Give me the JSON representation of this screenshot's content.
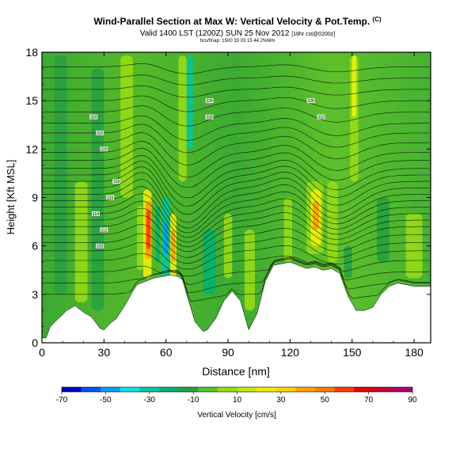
{
  "header": {
    "title": "Wind-Parallel Section at Max W: Vertical Velocity & Pot.Temp.",
    "title_mark": "(C)",
    "subtitle": "Valid 1400 LST (1200Z) SUN 25 Nov 2012",
    "subtitle_small": "[18hr cst@0200z]",
    "runinfo": "hcs/fmap: 1500 33 03 15 44 2%Mm"
  },
  "chart_data": {
    "type": "heatmap",
    "xlabel": "Distance [nm]",
    "ylabel": "Height [Kft MSL]",
    "xlim": [
      0,
      188
    ],
    "ylim": [
      0,
      18
    ],
    "xticks": [
      0,
      30,
      60,
      90,
      120,
      150,
      180
    ],
    "yticks": [
      0,
      3,
      6,
      9,
      12,
      15,
      18
    ],
    "grid": false,
    "terrain_kft": {
      "x": [
        0,
        2,
        4,
        8,
        12,
        16,
        20,
        24,
        28,
        30,
        33,
        36,
        40,
        44,
        46,
        50,
        54,
        58,
        62,
        66,
        68,
        70,
        74,
        78,
        80,
        84,
        88,
        92,
        96,
        100,
        104,
        108,
        112,
        116,
        120,
        124,
        128,
        132,
        136,
        140,
        144,
        148,
        152,
        156,
        160,
        164,
        168,
        172,
        176,
        180,
        184,
        188
      ],
      "y": [
        0.3,
        0.3,
        1.0,
        1.5,
        2.0,
        2.3,
        1.9,
        1.6,
        0.9,
        0.8,
        1.2,
        1.5,
        2.3,
        3.2,
        3.6,
        3.8,
        4.0,
        4.1,
        4.2,
        4.1,
        3.9,
        3.0,
        1.3,
        0.7,
        0.8,
        1.5,
        2.6,
        3.2,
        2.6,
        0.8,
        1.8,
        3.8,
        4.8,
        4.9,
        5.0,
        4.8,
        4.6,
        4.7,
        4.5,
        4.6,
        4.3,
        2.9,
        2.0,
        2.0,
        2.2,
        3.0,
        3.5,
        3.7,
        3.6,
        3.5,
        3.5,
        3.5
      ]
    },
    "vertical_velocity_cells": {
      "unit": "cm/s",
      "items": [
        {
          "x": [
            6,
            12
          ],
          "y": [
            3,
            17.8
          ],
          "value": -10
        },
        {
          "x": [
            16,
            22
          ],
          "y": [
            2.5,
            10
          ],
          "value": 10
        },
        {
          "x": [
            24,
            30
          ],
          "y": [
            2,
            17
          ],
          "value": -10
        },
        {
          "x": [
            38,
            44
          ],
          "y": [
            9,
            17.8
          ],
          "value": 10
        },
        {
          "x": [
            46,
            49
          ],
          "y": [
            4.5,
            8.5
          ],
          "value": 10
        },
        {
          "x": [
            49,
            53
          ],
          "y": [
            4.0,
            9.5
          ],
          "value": 30
        },
        {
          "x": [
            50,
            53
          ],
          "y": [
            5.2,
            8.8
          ],
          "value": 50
        },
        {
          "x": [
            50.5,
            52.5
          ],
          "y": [
            5.8,
            8.2
          ],
          "value": 70
        },
        {
          "x": [
            55,
            57
          ],
          "y": [
            5,
            8.5
          ],
          "value": -20
        },
        {
          "x": [
            58,
            62
          ],
          "y": [
            4,
            9
          ],
          "value": -30
        },
        {
          "x": [
            59,
            61
          ],
          "y": [
            5.5,
            7.5
          ],
          "value": -45
        },
        {
          "x": [
            62,
            65
          ],
          "y": [
            4,
            8
          ],
          "value": 30
        },
        {
          "x": [
            62.5,
            64.5
          ],
          "y": [
            5,
            7
          ],
          "value": 50
        },
        {
          "x": [
            66,
            70
          ],
          "y": [
            10,
            17.8
          ],
          "value": 10
        },
        {
          "x": [
            70,
            73
          ],
          "y": [
            12,
            17.8
          ],
          "value": -30
        },
        {
          "x": [
            78,
            84
          ],
          "y": [
            3,
            7
          ],
          "value": -20
        },
        {
          "x": [
            88,
            92
          ],
          "y": [
            4,
            8
          ],
          "value": 10
        },
        {
          "x": [
            98,
            103
          ],
          "y": [
            2,
            7
          ],
          "value": 10
        },
        {
          "x": [
            117,
            121
          ],
          "y": [
            5,
            9
          ],
          "value": 10
        },
        {
          "x": [
            128,
            136
          ],
          "y": [
            5.5,
            10
          ],
          "value": 10
        },
        {
          "x": [
            130,
            135
          ],
          "y": [
            6,
            9.5
          ],
          "value": 30
        },
        {
          "x": [
            131,
            134
          ],
          "y": [
            7,
            8.8
          ],
          "value": 50
        },
        {
          "x": [
            138,
            143
          ],
          "y": [
            5,
            10
          ],
          "value": 10
        },
        {
          "x": [
            146,
            150
          ],
          "y": [
            4,
            6
          ],
          "value": -10
        },
        {
          "x": [
            149,
            153
          ],
          "y": [
            10,
            17.8
          ],
          "value": 10
        },
        {
          "x": [
            150,
            152
          ],
          "y": [
            14,
            17.8
          ],
          "value": 30
        },
        {
          "x": [
            162,
            168
          ],
          "y": [
            5,
            9
          ],
          "value": -10
        },
        {
          "x": [
            176,
            184
          ],
          "y": [
            4,
            8
          ],
          "value": 10
        }
      ]
    },
    "potential_temperature_isentropes_kft": [
      3.0,
      3.7,
      4.4,
      5.1,
      5.7,
      6.2,
      6.7,
      7.2,
      7.6,
      8.0,
      8.4,
      8.8,
      9.2,
      9.6,
      10.0,
      10.4,
      10.8,
      11.3,
      11.8,
      12.4,
      13.0,
      13.6,
      14.3,
      15.0,
      15.7,
      16.4,
      17.1
    ],
    "contour_labels": [
      "310",
      "312",
      "314",
      "316",
      "318",
      "320",
      "322",
      "324",
      "326",
      "328",
      "330",
      "332"
    ]
  },
  "colorbar": {
    "ticks": [
      "-70",
      "-50",
      "-30",
      "-10",
      "10",
      "30",
      "50",
      "70",
      "90"
    ],
    "colors": [
      "#0000c8",
      "#0050ff",
      "#00a0ff",
      "#00e6e6",
      "#00c8a0",
      "#00b46e",
      "#28a040",
      "#50c828",
      "#96dc14",
      "#c8e600",
      "#f0f000",
      "#ffd200",
      "#ffa000",
      "#ff7800",
      "#ff3c00",
      "#e60000",
      "#c8003c",
      "#b4006e"
    ],
    "label": "Vertical Velocity [cm/s]"
  }
}
